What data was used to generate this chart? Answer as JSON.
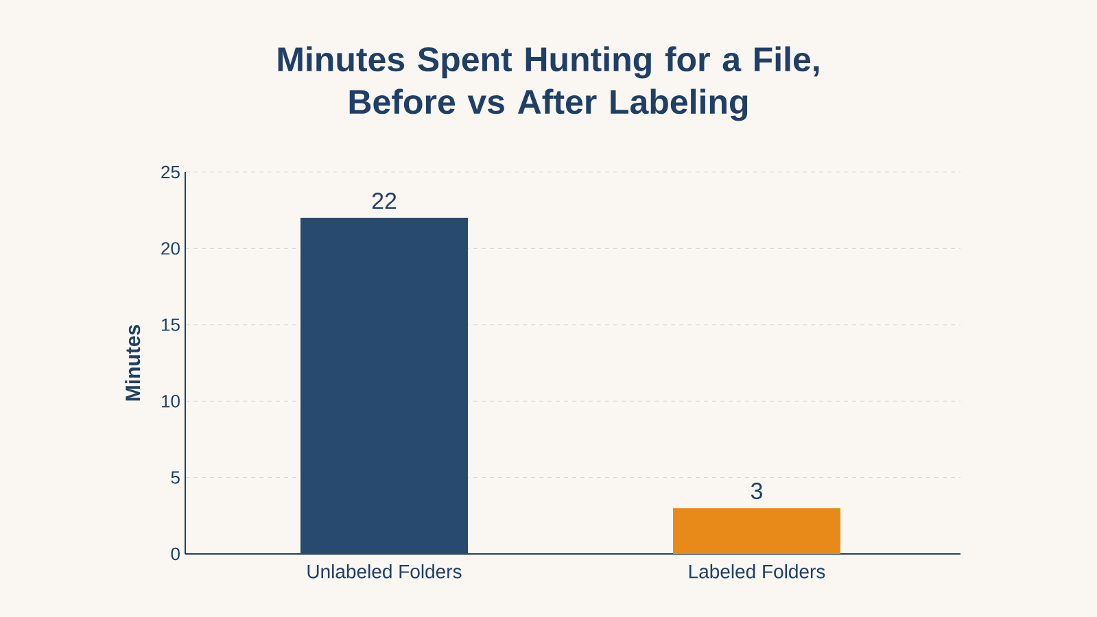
{
  "chart_data": {
    "type": "bar",
    "title": "Minutes Spent Hunting for a File,\nBefore vs After Labeling",
    "ylabel": "Minutes",
    "categories": [
      "Unlabeled Folders",
      "Labeled Folders"
    ],
    "values": [
      22,
      3
    ],
    "colors": [
      "#284a6e",
      "#e88a1a"
    ],
    "ylim": [
      0,
      25
    ],
    "yticks": [
      0,
      5,
      10,
      15,
      20,
      25
    ],
    "grid": "y",
    "data_labels": true
  }
}
